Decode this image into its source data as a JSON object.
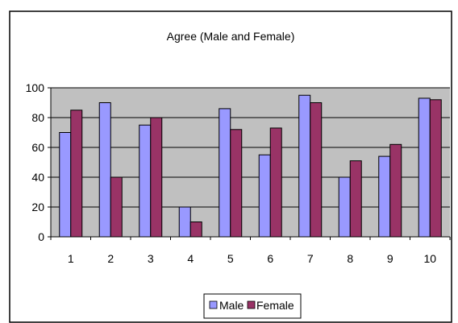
{
  "chart_data": {
    "type": "bar",
    "title": "Agree (Male and Female)",
    "xlabel": "",
    "ylabel": "",
    "categories": [
      "1",
      "2",
      "3",
      "4",
      "5",
      "6",
      "7",
      "8",
      "9",
      "10"
    ],
    "series": [
      {
        "name": "Male",
        "color": "#9999ff",
        "values": [
          70,
          90,
          75,
          20,
          86,
          55,
          95,
          40,
          54,
          93
        ]
      },
      {
        "name": "Female",
        "color": "#993366",
        "values": [
          85,
          40,
          80,
          10,
          72,
          73,
          90,
          51,
          62,
          92
        ]
      }
    ],
    "ylim": [
      0,
      100
    ],
    "yticks": [
      "0",
      "20",
      "40",
      "60",
      "80",
      "100"
    ],
    "grid": true,
    "plot_background": "#c0c0c0",
    "legend_position": "bottom"
  }
}
